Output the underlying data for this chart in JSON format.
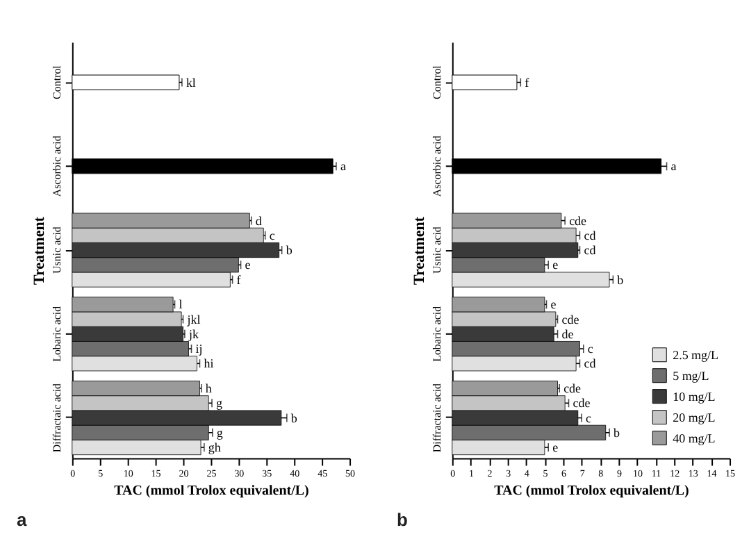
{
  "chart_data": [
    {
      "type": "bar",
      "orientation": "horizontal",
      "ylabel": "Treatment",
      "xlabel": "TAC (mmol Trolox equivalent/L)",
      "categories": [
        "Control",
        "Ascorbic acid",
        "Usnic acid",
        "Lobaric acid",
        "Diffractaic acid"
      ],
      "xlim": [
        0,
        50
      ],
      "xticks": [
        0,
        5,
        10,
        15,
        20,
        25,
        30,
        35,
        40,
        45,
        50
      ],
      "grid": false,
      "legend": false,
      "annotations": [
        "a"
      ],
      "series": [
        {
          "color": "#e0e0e0",
          "values": [
            null,
            null,
            28.5,
            22.5,
            23.2
          ],
          "errors": [
            null,
            null,
            0.4,
            0.5,
            0.6
          ],
          "value_labels": [
            null,
            null,
            "f",
            "hi",
            "gh"
          ]
        },
        {
          "color": "#6e6e6e",
          "values": [
            null,
            null,
            30,
            21,
            24.6
          ],
          "errors": [
            null,
            null,
            0.4,
            0.5,
            0.7
          ],
          "value_labels": [
            null,
            null,
            "e",
            "ij",
            "g"
          ]
        },
        {
          "color": "#3a3a3a",
          "values": [
            null,
            null,
            37.3,
            20,
            37.7
          ],
          "errors": [
            null,
            null,
            0.5,
            0.3,
            1.0
          ],
          "value_labels": [
            null,
            null,
            "b",
            "jk",
            "b"
          ]
        },
        {
          "color": "#c4c4c4",
          "values": [
            null,
            null,
            34.5,
            19.7,
            24.6
          ],
          "errors": [
            null,
            null,
            0.3,
            0.3,
            0.6
          ],
          "value_labels": [
            null,
            null,
            "c",
            "jkl",
            "g"
          ]
        },
        {
          "color": "#9a9a9a",
          "values": [
            null,
            null,
            32,
            18.2,
            23
          ],
          "errors": [
            null,
            null,
            0.3,
            0.3,
            0.3
          ],
          "value_labels": [
            null,
            null,
            "d",
            "l",
            "h"
          ]
        },
        {
          "color": "#ffffff",
          "values": [
            19.3,
            null,
            null,
            null,
            null
          ],
          "errors": [
            0.5,
            null,
            null,
            null,
            null
          ],
          "value_labels": [
            "kl",
            null,
            null,
            null,
            null
          ]
        },
        {
          "color": "#000000",
          "values": [
            null,
            47,
            null,
            null,
            null
          ],
          "errors": [
            null,
            0.6,
            null,
            null,
            null
          ],
          "value_labels": [
            null,
            "a",
            null,
            null,
            null
          ]
        }
      ]
    },
    {
      "type": "bar",
      "orientation": "horizontal",
      "ylabel": "Treatment",
      "xlabel": "TAC (mmol Trolox equivalent/L)",
      "categories": [
        "Control",
        "Ascorbic acid",
        "Usnic acid",
        "Lobaric acid",
        "Diffractaic acid"
      ],
      "xlim": [
        0,
        15
      ],
      "xticks": [
        0,
        1,
        2,
        3,
        4,
        5,
        6,
        7,
        8,
        9,
        10,
        11,
        12,
        13,
        14,
        15
      ],
      "grid": false,
      "legend": "bottom right",
      "annotations": [
        "b"
      ],
      "series": [
        {
          "name": "2.5 mg/L",
          "color": "#e0e0e0",
          "values": [
            null,
            null,
            8.5,
            6.7,
            5.0
          ],
          "errors": [
            null,
            null,
            0.2,
            0.2,
            0.2
          ],
          "value_labels": [
            null,
            null,
            "b",
            "cd",
            "e"
          ]
        },
        {
          "name": "5 mg/L",
          "color": "#6e6e6e",
          "values": [
            null,
            null,
            5.0,
            6.9,
            8.3
          ],
          "errors": [
            null,
            null,
            0.2,
            0.2,
            0.2
          ],
          "value_labels": [
            null,
            null,
            "e",
            "c",
            "b"
          ]
        },
        {
          "name": "10 mg/L",
          "color": "#3a3a3a",
          "values": [
            null,
            null,
            6.8,
            5.5,
            6.8
          ],
          "errors": [
            null,
            null,
            0.1,
            0.2,
            0.2
          ],
          "value_labels": [
            null,
            null,
            "cd",
            "de",
            "c"
          ]
        },
        {
          "name": "20 mg/L",
          "color": "#c4c4c4",
          "values": [
            null,
            null,
            6.7,
            5.6,
            6.1
          ],
          "errors": [
            null,
            null,
            0.2,
            0.1,
            0.2
          ],
          "value_labels": [
            null,
            null,
            "cd",
            "cde",
            "cde"
          ]
        },
        {
          "name": "40 mg/L",
          "color": "#9a9a9a",
          "values": [
            null,
            null,
            5.9,
            5.0,
            5.7
          ],
          "errors": [
            null,
            null,
            0.2,
            0.1,
            0.1
          ],
          "value_labels": [
            null,
            null,
            "cde",
            "e",
            "cde"
          ]
        },
        {
          "color": "#ffffff",
          "values": [
            3.5,
            null,
            null,
            null,
            null
          ],
          "errors": [
            0.2,
            null,
            null,
            null,
            null
          ],
          "value_labels": [
            "f",
            null,
            null,
            null,
            null
          ]
        },
        {
          "color": "#000000",
          "values": [
            null,
            11.3,
            null,
            null,
            null
          ],
          "errors": [
            null,
            0.3,
            null,
            null,
            null
          ],
          "value_labels": [
            null,
            "a",
            null,
            null,
            null
          ]
        }
      ]
    }
  ]
}
